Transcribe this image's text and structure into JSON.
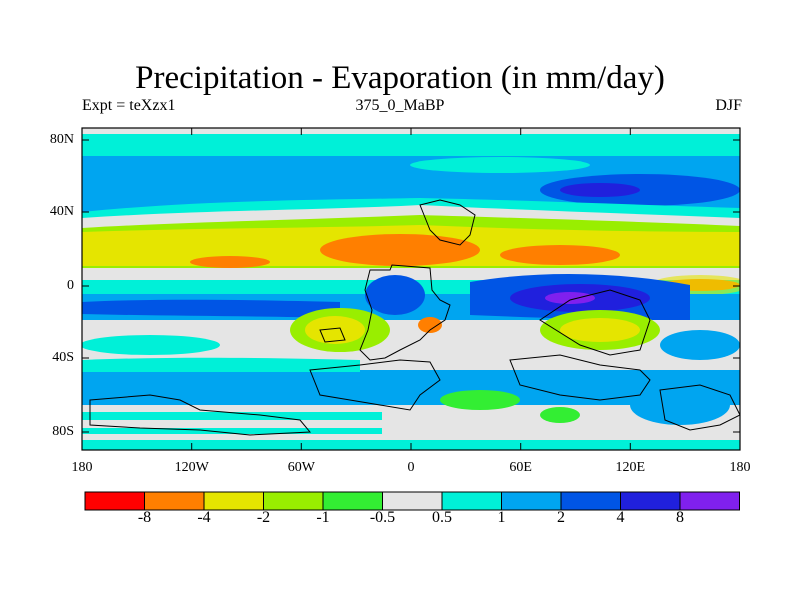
{
  "title": "Precipitation - Evaporation (in mm/day)",
  "subtitle_left": "Expt = teXzx1",
  "subtitle_center": "375_0_MaBP",
  "subtitle_right": "DJF",
  "lat_ticks": [
    "80N",
    "40N",
    "0",
    "40S",
    "80S"
  ],
  "lon_ticks": [
    "180",
    "120W",
    "60W",
    "0",
    "60E",
    "120E",
    "180"
  ],
  "colorbar": {
    "labels": [
      "-8",
      "-4",
      "-2",
      "-1",
      "-0.5",
      "0.5",
      "1",
      "2",
      "4",
      "8"
    ],
    "colors": [
      "#ff0000",
      "#ff7f00",
      "#e5e500",
      "#99ee00",
      "#33ee33",
      "#e5e5e5",
      "#00f0d8",
      "#00a5f0",
      "#0055e5",
      "#2020dd",
      "#8020ee"
    ]
  },
  "colors": {
    "ocean_background": "#00a5f0",
    "coastline": "#000000"
  }
}
